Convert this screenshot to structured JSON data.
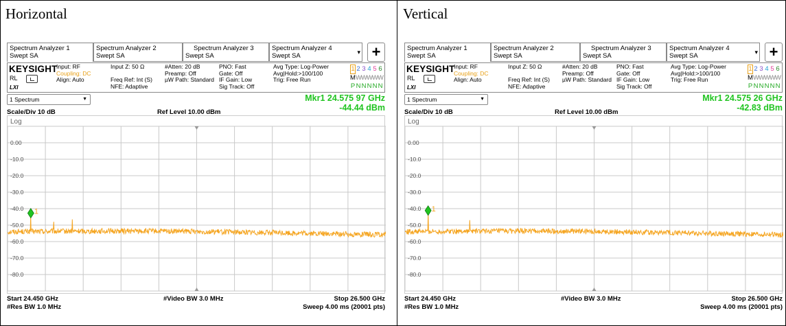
{
  "panels": [
    {
      "title": "Horizontal",
      "tabs": [
        {
          "line1": "Spectrum Analyzer 1",
          "line2": "Swept SA"
        },
        {
          "line1": "Spectrum Analyzer 2",
          "line2": "Swept SA"
        },
        {
          "line1": "Spectrum Analyzer 3",
          "line2": "Swept SA"
        },
        {
          "line1": "Spectrum Analyzer 4",
          "line2": "Swept SA"
        }
      ],
      "add_label": "+",
      "brand": "KEYSIGHT",
      "rl": "RL",
      "lxi": "LXI",
      "settings": {
        "c1": [
          "Input: RF",
          "Coupling: DC",
          "Align: Auto"
        ],
        "c2": [
          "Input Z: 50 Ω",
          "",
          "Freq Ref: Int (S)",
          "NFE: Adaptive"
        ],
        "c3": [
          "#Atten: 20 dB",
          "Preamp: Off",
          "µW Path: Standard"
        ],
        "c4": [
          "PNO: Fast",
          "Gate: Off",
          "IF Gain: Low",
          "Sig Track: Off"
        ],
        "c5": [
          "Avg Type: Log-Power",
          "Avg|Hold:>100/100",
          "Trig: Free Run"
        ]
      },
      "trace_numbers": [
        "1",
        "2",
        "3",
        "4",
        "5",
        "6"
      ],
      "trace_types": [
        "M",
        "W",
        "W",
        "W",
        "W",
        "W"
      ],
      "trace_det": [
        "P",
        "N",
        "N",
        "N",
        "N",
        "N"
      ],
      "dropdown": "1 Spectrum",
      "marker_freq": "Mkr1  24.575 97 GHz",
      "marker_amp": "-44.44 dBm",
      "scale": "Scale/Div 10 dB",
      "log": "Log",
      "ref_level": "Ref Level 10.00 dBm",
      "start": "Start 24.450 GHz",
      "res_bw": "#Res BW 1.0 MHz",
      "video_bw": "#Video BW 3.0 MHz",
      "stop": "Stop 26.500 GHz",
      "sweep": "Sweep 4.00 ms (20001 pts)",
      "marker_label": "1",
      "chart_data": {
        "type": "line",
        "y_ticks": [
          "0.00",
          "-10.0",
          "-20.0",
          "-30.0",
          "-40.0",
          "-50.0",
          "-60.0",
          "-70.0",
          "-80.0"
        ],
        "ylim": [
          -90,
          10
        ],
        "xlim": [
          24.45,
          26.5
        ],
        "noise_floor_dbm": -54,
        "marker": {
          "x": 24.57597,
          "y": -44.44
        },
        "spurs": [
          {
            "x": 24.57597,
            "y": -44.44
          },
          {
            "x": 24.7,
            "y": -48.0
          },
          {
            "x": 24.8,
            "y": -46.5
          }
        ]
      }
    },
    {
      "title": "Vertical",
      "tabs": [
        {
          "line1": "Spectrum Analyzer 1",
          "line2": "Swept SA"
        },
        {
          "line1": "Spectrum Analyzer 2",
          "line2": "Swept SA"
        },
        {
          "line1": "Spectrum Analyzer 3",
          "line2": "Swept SA"
        },
        {
          "line1": "Spectrum Analyzer 4",
          "line2": "Swept SA"
        }
      ],
      "add_label": "+",
      "brand": "KEYSIGHT",
      "rl": "RL",
      "lxi": "LXI",
      "settings": {
        "c1": [
          "Input: RF",
          "Coupling: DC",
          "Align: Auto"
        ],
        "c2": [
          "Input Z: 50 Ω",
          "",
          "Freq Ref: Int (S)",
          "NFE: Adaptive"
        ],
        "c3": [
          "#Atten: 20 dB",
          "Preamp: Off",
          "µW Path: Standard"
        ],
        "c4": [
          "PNO: Fast",
          "Gate: Off",
          "IF Gain: Low",
          "Sig Track: Off"
        ],
        "c5": [
          "Avg Type: Log-Power",
          "Avg|Hold:>100/100",
          "Trig: Free Run"
        ]
      },
      "trace_numbers": [
        "1",
        "2",
        "3",
        "4",
        "5",
        "6"
      ],
      "trace_types": [
        "M",
        "W",
        "W",
        "W",
        "W",
        "W"
      ],
      "trace_det": [
        "P",
        "N",
        "N",
        "N",
        "N",
        "N"
      ],
      "dropdown": "1 Spectrum",
      "marker_freq": "Mkr1  24.575 26 GHz",
      "marker_amp": "-42.83 dBm",
      "scale": "Scale/Div 10 dB",
      "log": "Log",
      "ref_level": "Ref Level 10.00 dBm",
      "start": "Start 24.450 GHz",
      "res_bw": "#Res BW 1.0 MHz",
      "video_bw": "#Video BW 3.0 MHz",
      "stop": "Stop 26.500 GHz",
      "sweep": "Sweep 4.00 ms (20001 pts)",
      "marker_label": "1",
      "chart_data": {
        "type": "line",
        "y_ticks": [
          "0.00",
          "-10.0",
          "-20.0",
          "-30.0",
          "-40.0",
          "-50.0",
          "-60.0",
          "-70.0",
          "-80.0"
        ],
        "ylim": [
          -90,
          10
        ],
        "xlim": [
          24.45,
          26.5
        ],
        "noise_floor_dbm": -54,
        "marker": {
          "x": 24.57526,
          "y": -42.83
        },
        "spurs": [
          {
            "x": 24.57526,
            "y": -42.83
          },
          {
            "x": 24.8,
            "y": -47.0
          }
        ]
      }
    }
  ],
  "colors": {
    "trace": "#f5a623",
    "marker": "#21c421",
    "coupling": "#e8a017",
    "grid": "#c8c8c8",
    "trace_num_colors": [
      "#e8a017",
      "#3a6fd8",
      "#8a50c8",
      "#20a0d0",
      "#e0409a",
      "#2a8a2a"
    ]
  }
}
